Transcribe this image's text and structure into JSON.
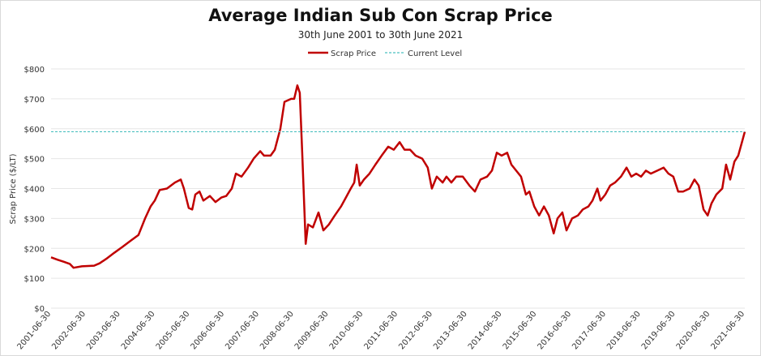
{
  "chart_data": {
    "type": "line",
    "title": "Average Indian Sub Con Scrap Price",
    "subtitle": "30th June 2001 to 30th June 2021",
    "xlabel": "",
    "ylabel": "Scrap Price ($/LT)",
    "ylim": [
      0,
      800
    ],
    "xlim": [
      2001.5,
      2021.5
    ],
    "yticks": [
      "$0",
      "$100",
      "$200",
      "$300",
      "$400",
      "$500",
      "$600",
      "$700",
      "$800"
    ],
    "xticks": [
      "2001-06-30",
      "2002-06-30",
      "2003-06-30",
      "2004-06-30",
      "2005-06-30",
      "2006-06-30",
      "2007-06-30",
      "2008-06-30",
      "2009-06-30",
      "2010-06-30",
      "2011-06-30",
      "2012-06-30",
      "2013-06-30",
      "2014-06-30",
      "2015-06-30",
      "2016-06-30",
      "2017-06-30",
      "2018-06-30",
      "2019-06-30",
      "2020-06-30",
      "2021-06-30"
    ],
    "grid": true,
    "legend_position": "top-center",
    "colors": {
      "scrap": "#c00000",
      "current": "#4bc0c0"
    },
    "series": [
      {
        "name": "Scrap Price",
        "x": [
          2001.5,
          2001.69,
          2001.87,
          2002.04,
          2002.15,
          2002.39,
          2002.74,
          2002.9,
          2003.09,
          2003.32,
          2003.56,
          2003.79,
          2004.02,
          2004.21,
          2004.37,
          2004.49,
          2004.63,
          2004.84,
          2005.07,
          2005.24,
          2005.33,
          2005.47,
          2005.57,
          2005.66,
          2005.78,
          2005.89,
          2006.08,
          2006.24,
          2006.41,
          2006.55,
          2006.71,
          2006.83,
          2006.99,
          2007.18,
          2007.34,
          2007.53,
          2007.64,
          2007.83,
          2007.95,
          2008.11,
          2008.23,
          2008.42,
          2008.51,
          2008.6,
          2008.67,
          2008.74,
          2008.84,
          2008.91,
          2009.05,
          2009.21,
          2009.35,
          2009.51,
          2009.68,
          2009.86,
          2010.0,
          2010.14,
          2010.24,
          2010.31,
          2010.4,
          2010.52,
          2010.68,
          2010.85,
          2011.03,
          2011.22,
          2011.38,
          2011.55,
          2011.69,
          2011.85,
          2012.01,
          2012.2,
          2012.36,
          2012.48,
          2012.62,
          2012.79,
          2012.9,
          2013.04,
          2013.18,
          2013.37,
          2013.56,
          2013.72,
          2013.88,
          2014.07,
          2014.21,
          2014.35,
          2014.49,
          2014.65,
          2014.77,
          2014.91,
          2015.05,
          2015.19,
          2015.29,
          2015.43,
          2015.57,
          2015.71,
          2015.85,
          2015.99,
          2016.1,
          2016.24,
          2016.36,
          2016.52,
          2016.69,
          2016.83,
          2016.99,
          2017.11,
          2017.25,
          2017.34,
          2017.48,
          2017.62,
          2017.76,
          2017.93,
          2018.09,
          2018.23,
          2018.37,
          2018.51,
          2018.65,
          2018.79,
          2018.98,
          2019.16,
          2019.3,
          2019.44,
          2019.58,
          2019.72,
          2019.91,
          2020.05,
          2020.17,
          2020.31,
          2020.43,
          2020.54,
          2020.68,
          2020.85,
          2020.96,
          2021.08,
          2021.2,
          2021.31,
          2021.43,
          2021.5
        ],
        "y": [
          170,
          162,
          155,
          148,
          135,
          140,
          142,
          150,
          165,
          185,
          205,
          225,
          245,
          300,
          340,
          360,
          395,
          400,
          420,
          430,
          400,
          335,
          330,
          380,
          390,
          360,
          375,
          355,
          370,
          375,
          400,
          450,
          440,
          470,
          500,
          525,
          510,
          510,
          530,
          600,
          690,
          700,
          700,
          745,
          720,
          520,
          215,
          280,
          270,
          320,
          260,
          280,
          310,
          340,
          370,
          400,
          420,
          480,
          410,
          430,
          450,
          480,
          510,
          540,
          530,
          555,
          530,
          530,
          510,
          500,
          470,
          400,
          440,
          420,
          440,
          420,
          440,
          440,
          410,
          390,
          430,
          440,
          460,
          520,
          510,
          520,
          480,
          460,
          440,
          380,
          390,
          340,
          310,
          340,
          310,
          250,
          300,
          320,
          260,
          300,
          310,
          330,
          340,
          360,
          400,
          360,
          380,
          410,
          420,
          440,
          470,
          440,
          450,
          440,
          460,
          450,
          460,
          470,
          450,
          440,
          390,
          390,
          400,
          430,
          410,
          330,
          310,
          350,
          380,
          400,
          480,
          430,
          490,
          510,
          560,
          590
        ]
      },
      {
        "name": "Current Level",
        "value": 590
      }
    ]
  }
}
